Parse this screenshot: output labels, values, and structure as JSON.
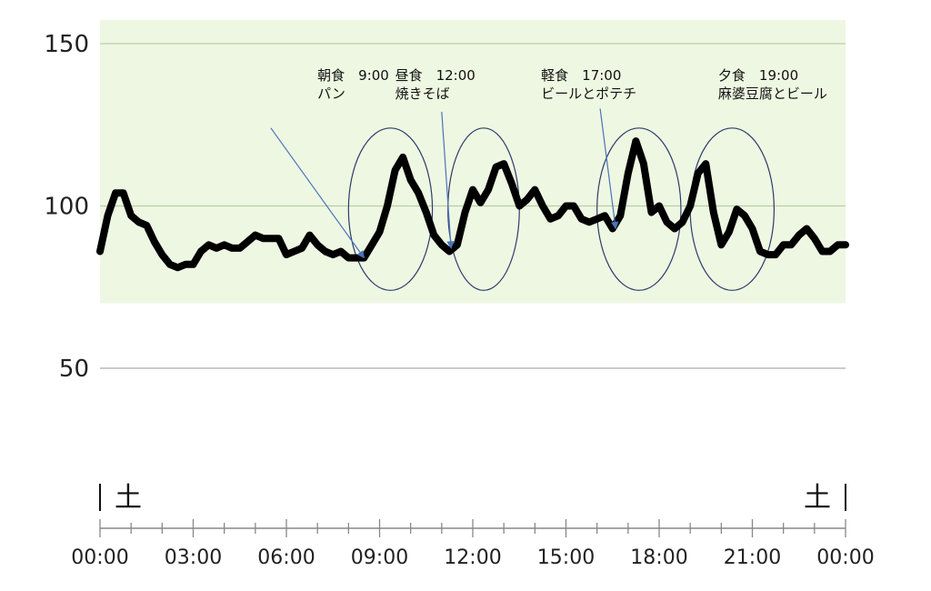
{
  "chart_data": {
    "type": "line",
    "title": "",
    "xlabel": "",
    "ylabel": "",
    "xlim": [
      0,
      24
    ],
    "ylim": [
      50,
      150
    ],
    "yticks": [
      {
        "value": 150,
        "label": "150"
      },
      {
        "value": 100,
        "label": "100"
      },
      {
        "value": 50,
        "label": "50"
      }
    ],
    "normal_range": [
      70,
      150
    ],
    "xticks": [
      {
        "hour": 0,
        "label": "00:00"
      },
      {
        "hour": 3,
        "label": "03:00"
      },
      {
        "hour": 6,
        "label": "06:00"
      },
      {
        "hour": 9,
        "label": "09:00"
      },
      {
        "hour": 12,
        "label": "12:00"
      },
      {
        "hour": 15,
        "label": "15:00"
      },
      {
        "hour": 18,
        "label": "18:00"
      },
      {
        "hour": 21,
        "label": "21:00"
      },
      {
        "hour": 24,
        "label": "00:00"
      }
    ],
    "day_labels": [
      {
        "hour": 0,
        "label": "土"
      },
      {
        "hour": 24,
        "label": "土"
      }
    ],
    "series": [
      {
        "x": [
          0,
          0.25,
          0.5,
          0.75,
          1.0,
          1.25,
          1.5,
          1.75,
          2.0,
          2.25,
          2.5,
          2.75,
          3.0,
          3.25,
          3.5,
          3.75,
          4.0,
          4.25,
          4.5,
          4.75,
          5.0,
          5.25,
          5.5,
          5.75,
          6.0,
          6.25,
          6.5,
          6.75,
          7.0,
          7.25,
          7.5,
          7.75,
          8.0,
          8.25,
          8.5,
          8.75,
          9.0,
          9.25,
          9.5,
          9.75,
          10.0,
          10.25,
          10.5,
          10.75,
          11.0,
          11.25,
          11.5,
          11.75,
          12.0,
          12.25,
          12.5,
          12.75,
          13.0,
          13.25,
          13.5,
          13.75,
          14.0,
          14.25,
          14.5,
          14.75,
          15.0,
          15.25,
          15.5,
          15.75,
          16.0,
          16.25,
          16.5,
          16.75,
          17.0,
          17.25,
          17.5,
          17.75,
          18.0,
          18.25,
          18.5,
          18.75,
          19.0,
          19.25,
          19.5,
          19.75,
          20.0,
          20.25,
          20.5,
          20.75,
          21.0,
          21.25,
          21.5,
          21.75,
          22.0,
          22.25,
          22.5,
          22.75,
          23.0,
          23.25,
          23.5,
          23.75,
          24.0
        ],
        "y": [
          86,
          97,
          104,
          104,
          97,
          95,
          94,
          89,
          85,
          82,
          81,
          82,
          82,
          86,
          88,
          87,
          88,
          87,
          87,
          89,
          91,
          90,
          90,
          90,
          85,
          86,
          87,
          91,
          88,
          86,
          85,
          86,
          84,
          84,
          84,
          88,
          92,
          100,
          111,
          115,
          108,
          104,
          98,
          91,
          88,
          86,
          88,
          98,
          105,
          101,
          105,
          112,
          113,
          107,
          100,
          102,
          105,
          100,
          96,
          97,
          100,
          100,
          96,
          95,
          96,
          97,
          93,
          97,
          110,
          120,
          113,
          98,
          100,
          95,
          93,
          95,
          100,
          110,
          113,
          98,
          88,
          92,
          99,
          97,
          93,
          86,
          85,
          85,
          88,
          88,
          91,
          93,
          90,
          86,
          86,
          88,
          88
        ]
      }
    ],
    "annotations": [
      {
        "line1": "朝食　9:00",
        "line2": "パン",
        "text_x": 7.0,
        "arrow_from": [
          5.5,
          124
        ],
        "arrow_to": [
          8.5,
          84
        ]
      },
      {
        "line1": "昼食　12:00",
        "line2": "焼きそば",
        "text_x": 9.5,
        "arrow_from": [
          11.0,
          129
        ],
        "arrow_to": [
          11.3,
          87
        ]
      },
      {
        "line1": "軽食　17:00",
        "line2": "ビールとポテチ",
        "text_x": 14.2,
        "arrow_from": [
          16.1,
          130
        ],
        "arrow_to": [
          16.6,
          93
        ]
      }
    ],
    "labels_only": [
      {
        "line1": "夕食　19:00",
        "line2": "麻婆豆腐とビール",
        "text_x": 19.9
      }
    ],
    "highlight_circles": [
      {
        "center_hour": 9.35,
        "center_value": 99,
        "hour_radius": 1.35,
        "value_radius": 25
      },
      {
        "center_hour": 12.35,
        "center_value": 99,
        "hour_radius": 1.15,
        "value_radius": 25
      },
      {
        "center_hour": 17.35,
        "center_value": 99,
        "hour_radius": 1.35,
        "value_radius": 25
      },
      {
        "center_hour": 20.35,
        "center_value": 99,
        "hour_radius": 1.35,
        "value_radius": 25
      }
    ]
  }
}
